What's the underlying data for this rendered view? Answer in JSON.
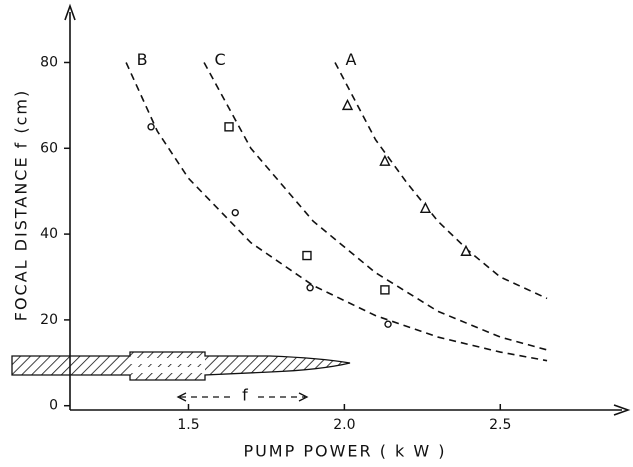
{
  "chart_data": {
    "type": "scatter",
    "x_label": "PUMP POWER  ( k W )",
    "y_label": "FOCAL DISTANCE  f  (cm)",
    "inset_label": "f",
    "xlim": [
      1.12,
      2.9
    ],
    "ylim": [
      -1,
      92
    ],
    "xticks": [
      1.5,
      {
        "value": 2,
        "label": "2.0"
      },
      2.5
    ],
    "yticks": [
      0,
      20,
      40,
      60,
      80
    ],
    "color": "#111111",
    "series": [
      {
        "name": "B",
        "marker": "circle",
        "x": [
          1.38,
          1.65,
          1.89,
          2.14
        ],
        "values": [
          65,
          45,
          27.5,
          19
        ],
        "fit": {
          "x": [
            1.3,
            1.4,
            1.5,
            1.7,
            1.9,
            2.1,
            2.3,
            2.5,
            2.65
          ],
          "values": [
            80,
            64,
            53,
            38,
            28,
            21,
            16,
            12.5,
            10.5
          ]
        }
      },
      {
        "name": "C",
        "marker": "square",
        "x": [
          1.63,
          1.88,
          2.13
        ],
        "values": [
          65,
          35,
          27
        ],
        "fit": {
          "x": [
            1.55,
            1.7,
            1.9,
            2.1,
            2.3,
            2.5,
            2.65
          ],
          "values": [
            80,
            60,
            43,
            31,
            22,
            16,
            13
          ]
        }
      },
      {
        "name": "A",
        "marker": "triangle",
        "x": [
          2.01,
          2.13,
          2.26,
          2.39
        ],
        "values": [
          70,
          57,
          46,
          36
        ],
        "fit": {
          "x": [
            1.97,
            2.1,
            2.2,
            2.3,
            2.4,
            2.5,
            2.65
          ],
          "values": [
            80,
            62,
            52,
            43,
            36,
            30,
            25
          ]
        }
      }
    ]
  }
}
